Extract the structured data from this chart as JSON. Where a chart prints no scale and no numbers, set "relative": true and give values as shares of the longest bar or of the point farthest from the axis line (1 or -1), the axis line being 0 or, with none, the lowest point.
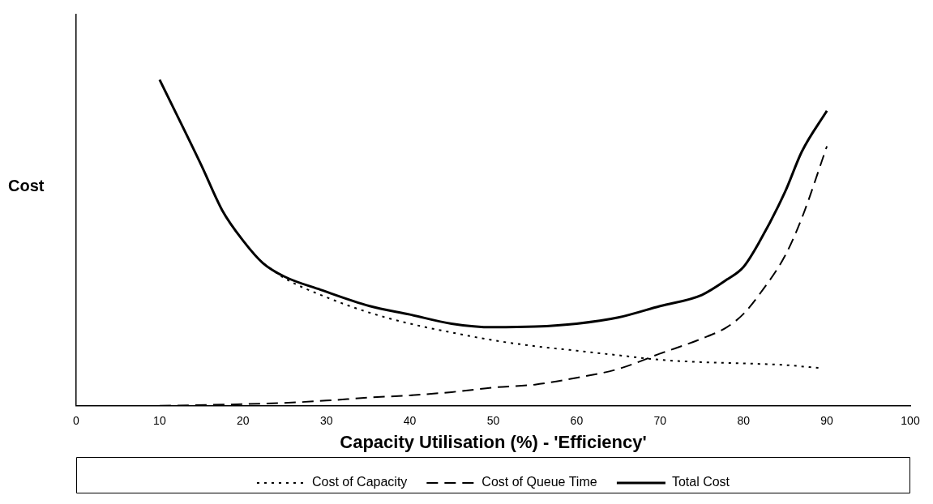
{
  "chart_data": {
    "type": "line",
    "xlabel": "Capacity Utilisation (%) - 'Efficiency'",
    "ylabel": "Cost",
    "relative": true,
    "xlim": [
      0,
      100
    ],
    "xticks": [
      0,
      10,
      20,
      30,
      40,
      50,
      60,
      70,
      80,
      90,
      100
    ],
    "grid": false,
    "legend": "bottom",
    "marker": "none",
    "series": [
      {
        "name": "Cost of Capacity",
        "color": "#000000",
        "line_style": "dotted",
        "x": [
          22.4,
          25,
          30,
          35,
          40,
          45,
          50,
          55,
          60,
          65,
          70,
          75,
          80,
          85,
          89
        ],
        "values": [
          0.4375,
          0.391,
          0.333,
          0.287,
          0.252,
          0.225,
          0.201,
          0.183,
          0.169,
          0.155,
          0.141,
          0.134,
          0.13,
          0.125,
          0.116
        ]
      },
      {
        "name": "Cost of Queue Time",
        "color": "#000000",
        "line_style": "dashed",
        "x": [
          10,
          20,
          25,
          30,
          35,
          40,
          45,
          50,
          55,
          60,
          65,
          70,
          75,
          78,
          80,
          82,
          85,
          87,
          90
        ],
        "values": [
          0,
          0.005,
          0.009,
          0.016,
          0.025,
          0.032,
          0.042,
          0.056,
          0.065,
          0.086,
          0.113,
          0.16,
          0.206,
          0.241,
          0.282,
          0.345,
          0.461,
          0.576,
          0.796
        ]
      },
      {
        "name": "Total Cost",
        "color": "#000000",
        "line_style": "solid",
        "x": [
          10,
          15,
          17.5,
          20,
          22.4,
          25,
          29.3,
          35.2,
          40,
          45,
          50,
          55,
          60,
          65,
          70,
          75,
          78,
          80,
          82,
          85,
          87,
          90
        ],
        "values": [
          1,
          0.738,
          0.6,
          0.507,
          0.4375,
          0.396,
          0.356,
          0.306,
          0.28,
          0.252,
          0.241,
          0.243,
          0.252,
          0.271,
          0.306,
          0.34,
          0.387,
          0.426,
          0.507,
          0.657,
          0.78,
          0.905
        ]
      }
    ]
  }
}
